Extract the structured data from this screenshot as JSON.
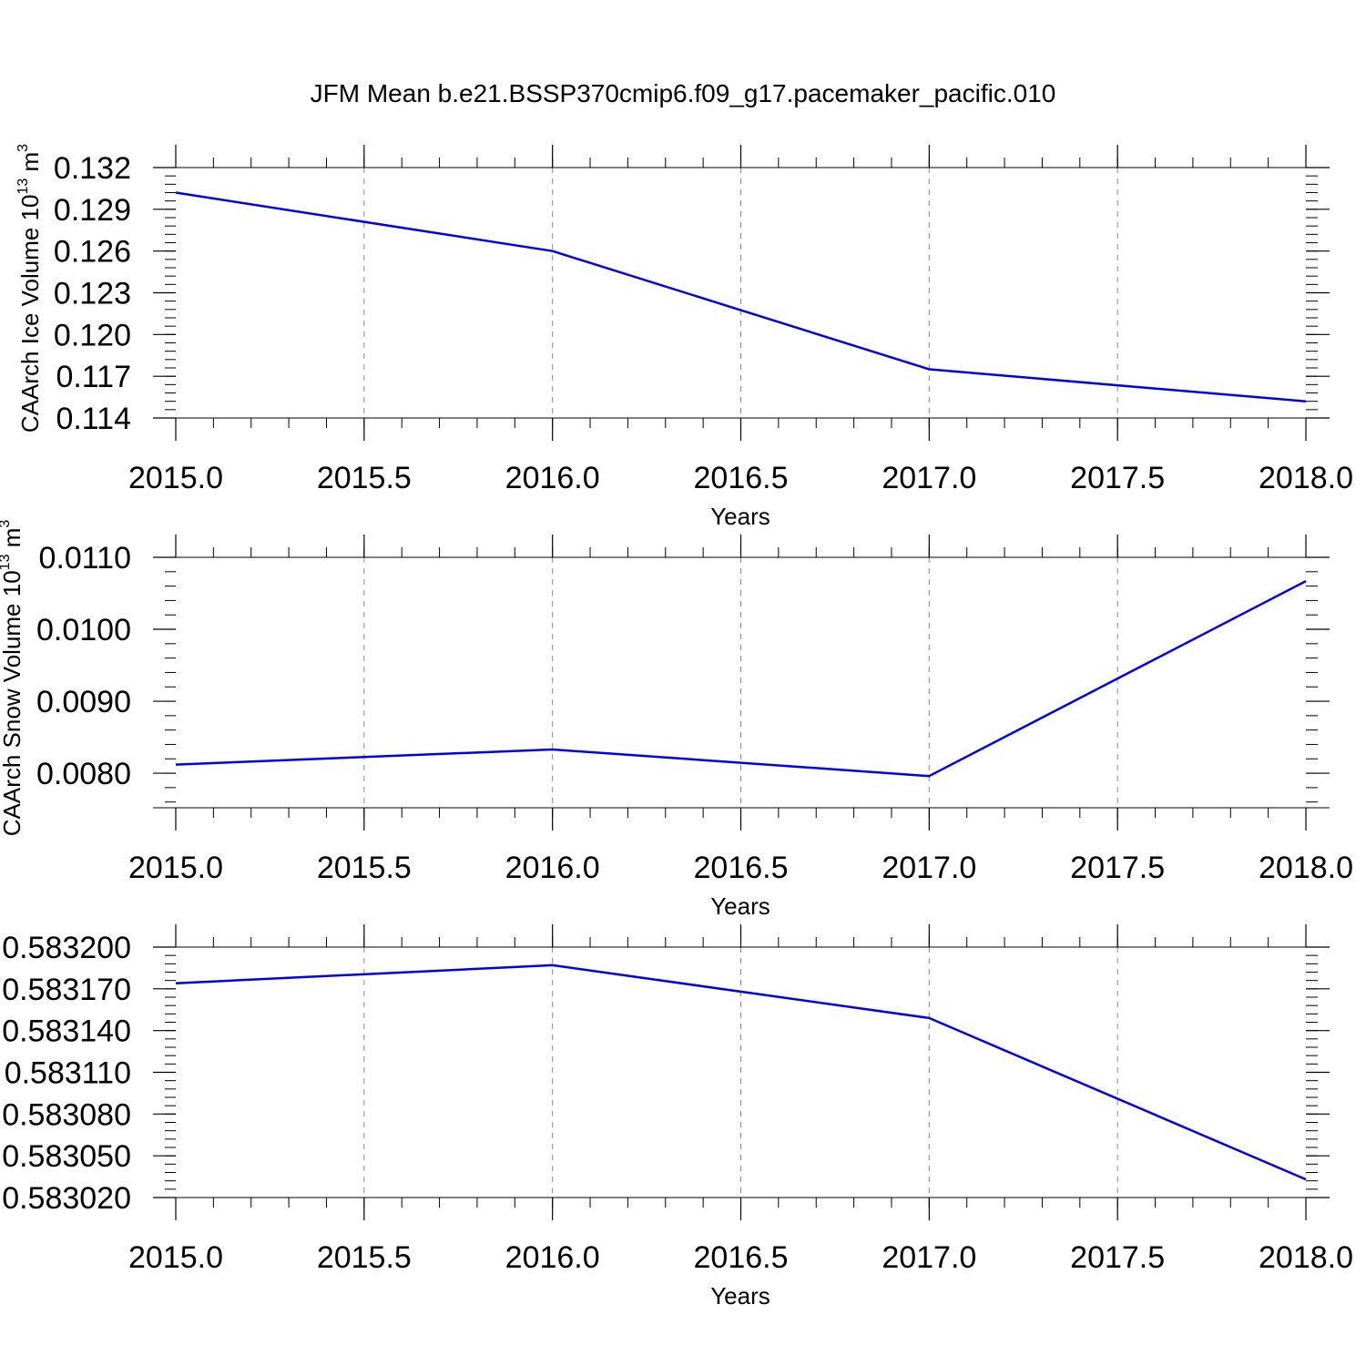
{
  "title": "JFM Mean b.e21.BSSP370cmip6.f09_g17.pacemaker_pacific.010",
  "colors": {
    "line": "#0000ee",
    "axis": "#000000",
    "grid": "#888888",
    "background": "#ffffff"
  },
  "chart_data": [
    {
      "type": "line",
      "xlabel": "Years",
      "ylabel": {
        "text": "CAArch Ice Volume 10",
        "exponent": "13",
        "unit": " m",
        "unit_exponent": "3"
      },
      "xlim": [
        2015.0,
        2018.0
      ],
      "ylim": [
        0.114,
        0.132
      ],
      "x_ticks": [
        "2015.0",
        "2015.5",
        "2016.0",
        "2016.5",
        "2017.0",
        "2017.5",
        "2018.0"
      ],
      "y_ticks": [
        "0.114",
        "0.117",
        "0.120",
        "0.123",
        "0.126",
        "0.129",
        "0.132"
      ],
      "x_minor_step": 0.1,
      "y_minor_step": 0.0006,
      "grid": "vertical dashed at major x ticks",
      "series": [
        {
          "x": [
            2015,
            2016,
            2017,
            2018
          ],
          "y": [
            0.1302,
            0.126,
            0.1175,
            0.1152
          ]
        }
      ]
    },
    {
      "type": "line",
      "xlabel": "Years",
      "ylabel": {
        "text": "CAArch Snow Volume 10",
        "exponent": "13",
        "unit": " m",
        "unit_exponent": "3"
      },
      "xlim": [
        2015.0,
        2018.0
      ],
      "ylim": [
        0.00752,
        0.011
      ],
      "x_ticks": [
        "2015.0",
        "2015.5",
        "2016.0",
        "2016.5",
        "2017.0",
        "2017.5",
        "2018.0"
      ],
      "y_ticks": [
        "0.0080",
        "0.0090",
        "0.0100",
        "0.0110"
      ],
      "x_minor_step": 0.1,
      "y_minor_step": 0.0002,
      "grid": "vertical dashed at major x ticks",
      "series": [
        {
          "x": [
            2015,
            2016,
            2017,
            2018
          ],
          "y": [
            0.00812,
            0.00833,
            0.00796,
            0.01067
          ]
        }
      ]
    },
    {
      "type": "line",
      "xlabel": "Years",
      "ylabel": null,
      "xlim": [
        2015.0,
        2018.0
      ],
      "ylim": [
        0.58302,
        0.5832
      ],
      "x_ticks": [
        "2015.0",
        "2015.5",
        "2016.0",
        "2016.5",
        "2017.0",
        "2017.5",
        "2018.0"
      ],
      "y_ticks": [
        "0.583020",
        "0.583050",
        "0.583080",
        "0.583110",
        "0.583140",
        "0.583170",
        "0.583200"
      ],
      "x_minor_step": 0.1,
      "y_minor_step": 6e-06,
      "grid": "vertical dashed at major x ticks",
      "series": [
        {
          "x": [
            2015,
            2016,
            2017,
            2018
          ],
          "y": [
            0.583174,
            0.583187,
            0.583149,
            0.583033
          ]
        }
      ]
    }
  ]
}
